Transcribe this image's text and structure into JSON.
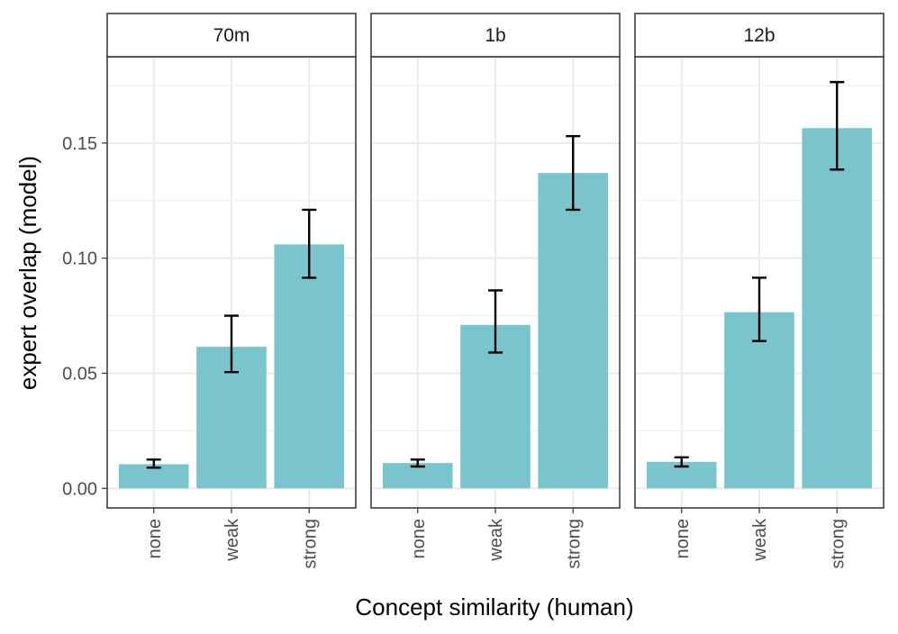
{
  "chart_data": {
    "type": "bar",
    "facet_by": "model size",
    "facets": [
      {
        "name": "70m",
        "categories": [
          "none",
          "weak",
          "strong"
        ],
        "values": [
          0.0105,
          0.0615,
          0.106
        ],
        "error_low": [
          0.009,
          0.0505,
          0.0915
        ],
        "error_high": [
          0.0125,
          0.075,
          0.121
        ]
      },
      {
        "name": "1b",
        "categories": [
          "none",
          "weak",
          "strong"
        ],
        "values": [
          0.011,
          0.071,
          0.137
        ],
        "error_low": [
          0.0095,
          0.059,
          0.121
        ],
        "error_high": [
          0.0125,
          0.086,
          0.153
        ]
      },
      {
        "name": "12b",
        "categories": [
          "none",
          "weak",
          "strong"
        ],
        "values": [
          0.0115,
          0.0765,
          0.1565
        ],
        "error_low": [
          0.0095,
          0.064,
          0.1385
        ],
        "error_high": [
          0.0135,
          0.0915,
          0.1765
        ]
      }
    ],
    "xlabel": "Concept similarity (human)",
    "ylabel": "expert overlap (model)",
    "ylim": [
      -0.0085,
      0.1875
    ],
    "yticks": [
      0.0,
      0.05,
      0.1,
      0.15
    ],
    "ytick_labels": [
      "0.00",
      "0.05",
      "0.10",
      "0.15"
    ],
    "grid": true,
    "bar_color": "#7ac5cd",
    "error_color": "#000000",
    "gridline_color": "#ebebeb"
  }
}
